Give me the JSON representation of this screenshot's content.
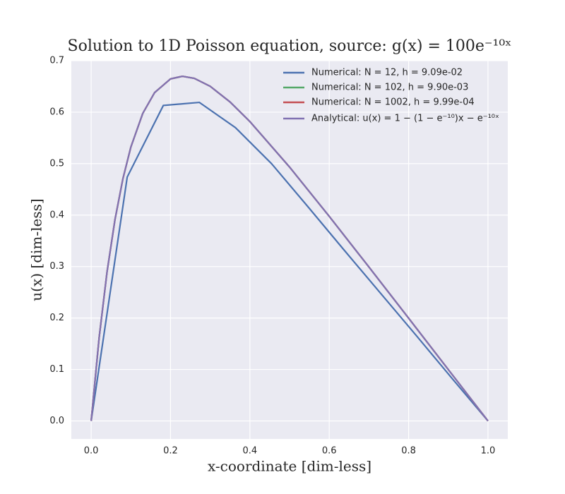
{
  "chart_data": {
    "type": "line",
    "title": "Solution to 1D Poisson equation, source: g(x) = 100e⁻¹⁰ˣ",
    "x_label": "x-coordinate [dim-less]",
    "y_label": "u(x) [dim-less]",
    "xlim": [
      -0.05,
      1.05
    ],
    "xticks": [
      0.0,
      0.2,
      0.4,
      0.6,
      0.8,
      1.0
    ],
    "ylim": [
      -0.035,
      0.7
    ],
    "yticks": [
      0.0,
      0.1,
      0.2,
      0.3,
      0.4,
      0.5,
      0.6,
      0.7
    ],
    "grid": true,
    "legend": "upper right",
    "series": [
      {
        "name": "Numerical: N = 12, h = 9.09e-02",
        "color": "#4c72b0",
        "x": [
          0,
          0.0909,
          0.1818,
          0.2727,
          0.3636,
          0.4545,
          0.5455,
          0.6364,
          0.7273,
          0.8182,
          0.9091,
          1.0
        ],
        "values": [
          0,
          0.474,
          0.613,
          0.619,
          0.57,
          0.5,
          0.417,
          0.333,
          0.25,
          0.167,
          0.083,
          0
        ]
      },
      {
        "name": "Numerical: N = 102, h = 9.90e-03",
        "color": "#55a868",
        "x": [
          0,
          0.02,
          0.04,
          0.06,
          0.08,
          0.1,
          0.13,
          0.16,
          0.2,
          0.23,
          0.26,
          0.3,
          0.35,
          0.4,
          0.5,
          0.6,
          0.7,
          0.8,
          0.9,
          1.0
        ],
        "values": [
          0,
          0.1613,
          0.2897,
          0.3912,
          0.4707,
          0.5321,
          0.5975,
          0.6381,
          0.6647,
          0.6697,
          0.6657,
          0.6502,
          0.6198,
          0.5817,
          0.4933,
          0.3975,
          0.2991,
          0.1997,
          0.0999,
          0
        ]
      },
      {
        "name": "Numerical: N = 1002, h = 9.99e-04",
        "color": "#c44e52",
        "x": [
          0,
          0.02,
          0.04,
          0.06,
          0.08,
          0.1,
          0.13,
          0.16,
          0.2,
          0.23,
          0.26,
          0.3,
          0.35,
          0.4,
          0.5,
          0.6,
          0.7,
          0.8,
          0.9,
          1.0
        ],
        "values": [
          0,
          0.1613,
          0.2897,
          0.3912,
          0.4707,
          0.5321,
          0.5975,
          0.6381,
          0.6647,
          0.6697,
          0.6657,
          0.6502,
          0.6198,
          0.5817,
          0.4933,
          0.3975,
          0.2991,
          0.1997,
          0.0999,
          0
        ]
      },
      {
        "name": "Analytical: u(x) = 1 − (1 − e⁻¹⁰)x − e⁻¹⁰ˣ",
        "color": "#8172b2",
        "x": [
          0,
          0.02,
          0.04,
          0.06,
          0.08,
          0.1,
          0.13,
          0.16,
          0.2,
          0.23,
          0.26,
          0.3,
          0.35,
          0.4,
          0.5,
          0.6,
          0.7,
          0.8,
          0.9,
          1.0
        ],
        "values": [
          0,
          0.1613,
          0.2897,
          0.3912,
          0.4707,
          0.5321,
          0.5975,
          0.6381,
          0.6647,
          0.6697,
          0.6657,
          0.6502,
          0.6198,
          0.5817,
          0.4933,
          0.3975,
          0.2991,
          0.1997,
          0.0999,
          0
        ]
      }
    ]
  }
}
